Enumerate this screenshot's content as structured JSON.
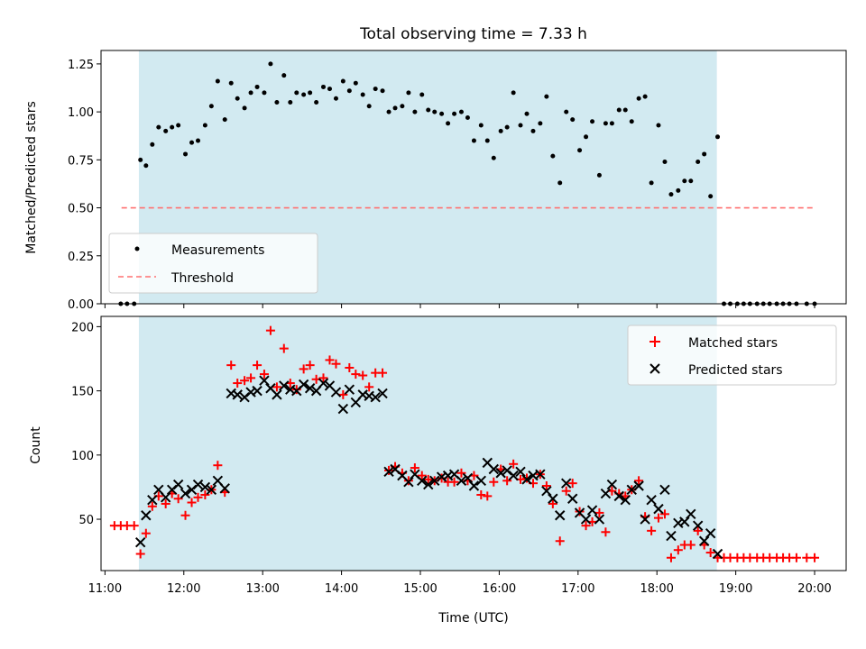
{
  "title": "Total observing time = 7.33 h",
  "colors": {
    "shading": "#add8e6",
    "measurement": "#000000",
    "threshold": "#ff7070",
    "matched": "#ff0000",
    "predicted": "#000000"
  },
  "chart_data": [
    {
      "type": "scatter",
      "panel": "top",
      "ylabel": "Matched/Predicted stars",
      "xlim": [
        10.95,
        20.4
      ],
      "ylim": [
        0,
        1.32
      ],
      "yticks": [
        0.0,
        0.25,
        0.5,
        0.75,
        1.0,
        1.25
      ],
      "ytick_labels": [
        "0.00",
        "0.25",
        "0.50",
        "0.75",
        "1.00",
        "1.25"
      ],
      "xticks": [
        11,
        12,
        13,
        14,
        15,
        16,
        17,
        18,
        19,
        20
      ],
      "shaded_range": [
        11.43,
        18.76
      ],
      "threshold": {
        "name": "Threshold",
        "y": 0.5,
        "x": [
          11.43,
          20.0
        ]
      },
      "legend": {
        "position": "lower-left",
        "entries": [
          "Measurements",
          "Threshold"
        ]
      },
      "series": [
        {
          "name": "Measurements",
          "marker": "dot",
          "x": [
            11.2,
            11.28,
            11.37,
            11.45,
            11.52,
            11.6,
            11.68,
            11.77,
            11.85,
            11.93,
            12.02,
            12.1,
            12.18,
            12.27,
            12.35,
            12.43,
            12.52,
            12.6,
            12.68,
            12.77,
            12.85,
            12.93,
            13.02,
            13.1,
            13.18,
            13.27,
            13.35,
            13.43,
            13.52,
            13.6,
            13.68,
            13.77,
            13.85,
            13.93,
            14.02,
            14.1,
            14.18,
            14.27,
            14.35,
            14.43,
            14.52,
            14.6,
            14.68,
            14.77,
            14.85,
            14.93,
            15.02,
            15.1,
            15.18,
            15.27,
            15.35,
            15.43,
            15.52,
            15.6,
            15.68,
            15.77,
            15.85,
            15.93,
            16.02,
            16.1,
            16.18,
            16.27,
            16.35,
            16.43,
            16.52,
            16.6,
            16.68,
            16.77,
            16.85,
            16.93,
            17.02,
            17.1,
            17.18,
            17.27,
            17.35,
            17.43,
            17.52,
            17.6,
            17.68,
            17.77,
            17.85,
            17.93,
            18.02,
            18.1,
            18.18,
            18.27,
            18.35,
            18.43,
            18.52,
            18.6,
            18.68,
            18.77,
            18.85,
            18.93,
            19.02,
            19.1,
            19.18,
            19.27,
            19.35,
            19.43,
            19.52,
            19.6,
            19.68,
            19.77,
            19.9,
            20.0
          ],
          "y": [
            0,
            0,
            0,
            0.75,
            0.72,
            0.83,
            0.92,
            0.9,
            0.92,
            0.93,
            0.78,
            0.84,
            0.85,
            0.93,
            1.03,
            1.16,
            0.96,
            1.15,
            1.07,
            1.02,
            1.1,
            1.13,
            1.1,
            1.25,
            1.05,
            1.19,
            1.05,
            1.1,
            1.09,
            1.1,
            1.05,
            1.13,
            1.12,
            1.07,
            1.16,
            1.11,
            1.15,
            1.09,
            1.03,
            1.12,
            1.11,
            1.0,
            1.02,
            1.03,
            1.1,
            1.0,
            1.09,
            1.01,
            1.0,
            0.99,
            0.94,
            0.99,
            1.0,
            0.97,
            0.85,
            0.93,
            0.85,
            0.76,
            0.9,
            0.92,
            1.1,
            0.93,
            0.99,
            0.9,
            0.94,
            1.08,
            0.77,
            0.63,
            1.0,
            0.96,
            0.8,
            0.87,
            0.95,
            0.67,
            0.94,
            0.94,
            1.01,
            1.01,
            0.95,
            1.07,
            1.08,
            0.63,
            0.93,
            0.74,
            0.57,
            0.59,
            0.64,
            0.64,
            0.74,
            0.78,
            0.56,
            0.87,
            0,
            0,
            0,
            0,
            0,
            0,
            0,
            0,
            0,
            0,
            0,
            0,
            0,
            0
          ]
        }
      ]
    },
    {
      "type": "scatter",
      "panel": "bottom",
      "ylabel": "Count",
      "xlabel": "Time (UTC)",
      "xlim": [
        10.95,
        20.4
      ],
      "ylim": [
        10,
        208
      ],
      "yticks": [
        50,
        100,
        150,
        200
      ],
      "xticks": [
        11,
        12,
        13,
        14,
        15,
        16,
        17,
        18,
        19,
        20
      ],
      "xtick_labels": [
        "11:00",
        "12:00",
        "13:00",
        "14:00",
        "15:00",
        "16:00",
        "17:00",
        "18:00",
        "19:00",
        "20:00"
      ],
      "shaded_range": [
        11.43,
        18.76
      ],
      "legend": {
        "position": "top-right",
        "entries": [
          "Matched stars",
          "Predicted stars"
        ]
      },
      "series": [
        {
          "name": "Matched stars",
          "marker": "plus",
          "x": [
            11.12,
            11.2,
            11.28,
            11.37,
            11.45,
            11.52,
            11.6,
            11.68,
            11.77,
            11.85,
            11.93,
            12.02,
            12.1,
            12.18,
            12.27,
            12.35,
            12.43,
            12.52,
            12.6,
            12.68,
            12.77,
            12.85,
            12.93,
            13.02,
            13.1,
            13.18,
            13.27,
            13.35,
            13.43,
            13.52,
            13.6,
            13.68,
            13.77,
            13.85,
            13.93,
            14.02,
            14.1,
            14.18,
            14.27,
            14.35,
            14.43,
            14.52,
            14.6,
            14.68,
            14.77,
            14.85,
            14.93,
            15.02,
            15.1,
            15.18,
            15.27,
            15.35,
            15.43,
            15.52,
            15.6,
            15.68,
            15.77,
            15.85,
            15.93,
            16.02,
            16.1,
            16.18,
            16.27,
            16.35,
            16.43,
            16.52,
            16.6,
            16.68,
            16.77,
            16.85,
            16.93,
            17.02,
            17.1,
            17.18,
            17.27,
            17.35,
            17.43,
            17.52,
            17.6,
            17.68,
            17.77,
            17.85,
            17.93,
            18.02,
            18.1,
            18.18,
            18.27,
            18.35,
            18.43,
            18.52,
            18.6,
            18.68,
            18.77,
            18.85,
            18.93,
            19.02,
            19.1,
            19.18,
            19.27,
            19.35,
            19.43,
            19.52,
            19.6,
            19.68,
            19.77,
            19.9,
            20.0
          ],
          "y": [
            45,
            45,
            45,
            45,
            23,
            39,
            60,
            68,
            62,
            70,
            66,
            53,
            63,
            67,
            69,
            73,
            92,
            71,
            170,
            156,
            158,
            160,
            170,
            163,
            197,
            153,
            183,
            156,
            151,
            167,
            170,
            159,
            160,
            174,
            171,
            147,
            168,
            163,
            162,
            153,
            164,
            164,
            88,
            91,
            86,
            80,
            90,
            84,
            81,
            80,
            82,
            79,
            79,
            86,
            80,
            84,
            69,
            68,
            79,
            89,
            80,
            93,
            81,
            82,
            78,
            85,
            76,
            62,
            33,
            72,
            78,
            56,
            45,
            48,
            55,
            40,
            72,
            70,
            68,
            73,
            80,
            52,
            41,
            51,
            54,
            20,
            26,
            30,
            30,
            41,
            30,
            24,
            20,
            20,
            20,
            20,
            20,
            20,
            20,
            20,
            20,
            20,
            20,
            20,
            20,
            20,
            20
          ]
        },
        {
          "name": "Predicted stars",
          "marker": "x",
          "x": [
            11.45,
            11.52,
            11.6,
            11.68,
            11.77,
            11.85,
            11.93,
            12.02,
            12.1,
            12.18,
            12.27,
            12.35,
            12.43,
            12.52,
            12.6,
            12.68,
            12.77,
            12.85,
            12.93,
            13.02,
            13.1,
            13.18,
            13.27,
            13.35,
            13.43,
            13.52,
            13.6,
            13.68,
            13.77,
            13.85,
            13.93,
            14.02,
            14.1,
            14.18,
            14.27,
            14.35,
            14.43,
            14.52,
            14.6,
            14.68,
            14.77,
            14.85,
            14.93,
            15.02,
            15.1,
            15.18,
            15.27,
            15.35,
            15.43,
            15.52,
            15.6,
            15.68,
            15.77,
            15.85,
            15.93,
            16.02,
            16.1,
            16.18,
            16.27,
            16.35,
            16.43,
            16.52,
            16.6,
            16.68,
            16.77,
            16.85,
            16.93,
            17.02,
            17.1,
            17.18,
            17.27,
            17.35,
            17.43,
            17.52,
            17.6,
            17.68,
            17.77,
            17.85,
            17.93,
            18.02,
            18.1,
            18.18,
            18.27,
            18.35,
            18.43,
            18.52,
            18.6,
            18.68,
            18.77
          ],
          "y": [
            32,
            53,
            65,
            73,
            67,
            73,
            77,
            70,
            73,
            77,
            75,
            73,
            80,
            74,
            148,
            147,
            145,
            149,
            150,
            158,
            152,
            147,
            154,
            151,
            150,
            155,
            152,
            150,
            156,
            154,
            149,
            136,
            151,
            141,
            147,
            146,
            145,
            148,
            87,
            89,
            84,
            79,
            85,
            80,
            77,
            80,
            83,
            84,
            85,
            80,
            82,
            76,
            80,
            94,
            89,
            86,
            88,
            84,
            87,
            81,
            84,
            85,
            72,
            66,
            53,
            78,
            66,
            55,
            50,
            57,
            50,
            70,
            77,
            68,
            65,
            73,
            76,
            50,
            65,
            58,
            73,
            37,
            47,
            48,
            54,
            45,
            33,
            39,
            23
          ]
        }
      ]
    }
  ]
}
